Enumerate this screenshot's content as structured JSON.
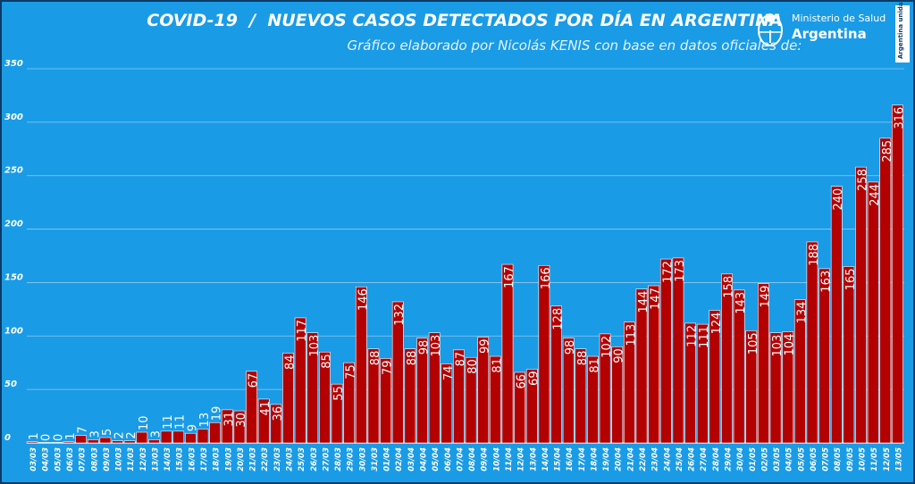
{
  "header": {
    "title": "COVID-19  /  NUEVOS CASOS DETECTADOS POR DÍA EN ARGENTINA",
    "subtitle": "Gráfico elaborado por Nicolás KENIS con base en datos oficiales de:",
    "logo_line1": "Ministerio de Salud",
    "logo_line2": "Argentina",
    "badge": "Argentina unida"
  },
  "colors": {
    "background": "#1a9be6",
    "bar": "#b30000",
    "grid": "#8fcaf2",
    "text": "#ffffff"
  },
  "chart_data": {
    "type": "bar",
    "title": "COVID-19  /  NUEVOS CASOS DETECTADOS POR DÍA EN ARGENTINA",
    "xlabel": "",
    "ylabel": "",
    "ylim": [
      0,
      350
    ],
    "yticks": [
      0,
      50,
      100,
      150,
      200,
      250,
      300,
      350
    ],
    "grid": true,
    "categories": [
      "03/03",
      "04/03",
      "05/03",
      "06/03",
      "07/03",
      "08/03",
      "09/03",
      "10/03",
      "11/03",
      "12/03",
      "13/03",
      "14/03",
      "15/03",
      "16/03",
      "17/03",
      "18/03",
      "19/03",
      "20/03",
      "21/03",
      "22/03",
      "23/03",
      "24/03",
      "25/03",
      "26/03",
      "27/03",
      "28/03",
      "29/03",
      "30/03",
      "31/03",
      "01/04",
      "02/04",
      "03/04",
      "04/04",
      "05/04",
      "06/04",
      "07/04",
      "08/04",
      "09/04",
      "10/04",
      "11/04",
      "12/04",
      "13/04",
      "14/04",
      "15/04",
      "16/04",
      "17/04",
      "18/04",
      "19/04",
      "20/04",
      "21/04",
      "22/04",
      "23/04",
      "24/04",
      "25/04",
      "26/04",
      "27/04",
      "28/04",
      "29/04",
      "30/04",
      "01/05",
      "02/05",
      "03/05",
      "04/05",
      "05/05",
      "06/05",
      "07/05",
      "08/05",
      "09/05",
      "10/05",
      "11/05",
      "12/05",
      "13/05"
    ],
    "values": [
      1,
      0,
      0,
      1,
      7,
      3,
      5,
      2,
      2,
      10,
      3,
      11,
      11,
      9,
      13,
      19,
      31,
      30,
      67,
      41,
      36,
      84,
      117,
      103,
      85,
      55,
      75,
      146,
      88,
      79,
      132,
      88,
      98,
      103,
      74,
      87,
      80,
      99,
      81,
      167,
      66,
      69,
      166,
      128,
      98,
      88,
      81,
      102,
      90,
      113,
      144,
      147,
      172,
      173,
      112,
      111,
      124,
      158,
      143,
      105,
      149,
      103,
      104,
      134,
      188,
      163,
      240,
      165,
      258,
      244,
      285,
      316
    ]
  }
}
